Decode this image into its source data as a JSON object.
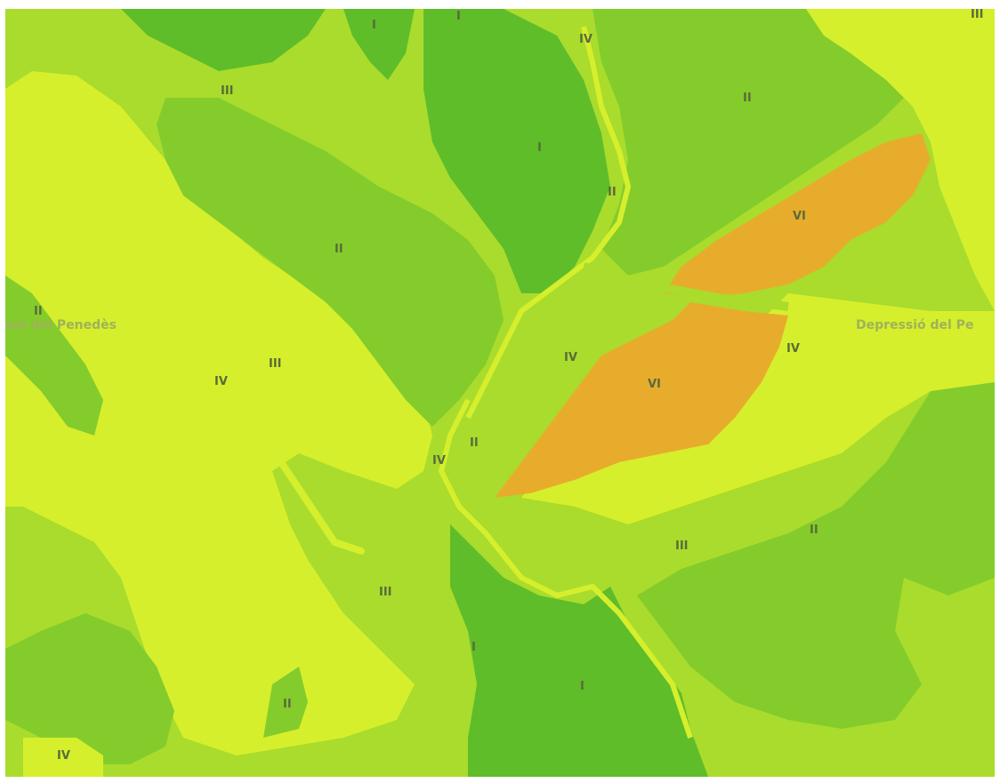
{
  "map": {
    "colors": {
      "class_I": "#5fbd2a",
      "class_II": "#84cc2c",
      "class_III": "#a9dc2c",
      "class_IV": "#d6ef2c",
      "class_VI": "#e8ac2c"
    },
    "region_labels": {
      "west": "aió del Penedès",
      "east": "Depressió del Pe"
    },
    "labels": {
      "l01": "I",
      "l02": "I",
      "l03": "IV",
      "l04": "III",
      "l05": "III",
      "l06": "II",
      "l07": "I",
      "l08": "II",
      "l09": "VI",
      "l10": "II",
      "l11": "II",
      "l12": "IV",
      "l13": "III",
      "l14": "VI",
      "l15": "IV",
      "l16": "IV",
      "l17": "IV",
      "l18": "II",
      "l19": "III",
      "l20": "II",
      "l21": "III",
      "l22": "I",
      "l23": "I",
      "l24": "II",
      "l25": "IV"
    }
  }
}
